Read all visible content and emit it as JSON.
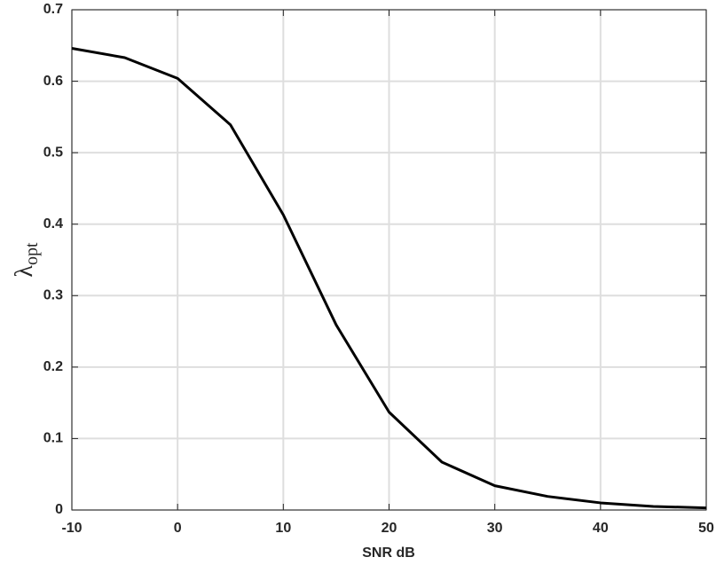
{
  "chart_data": {
    "type": "line",
    "x_label": "SNR dB",
    "y_label": {
      "symbol": "λ",
      "subscript": "opt"
    },
    "x": [
      -10,
      -5,
      0,
      5,
      10,
      15,
      20,
      25,
      30,
      35,
      40,
      45,
      50
    ],
    "series": [
      {
        "color": "#000000",
        "values": [
          0.646,
          0.633,
          0.604,
          0.539,
          0.413,
          0.259,
          0.137,
          0.067,
          0.034,
          0.019,
          0.01,
          0.005,
          0.003
        ]
      }
    ],
    "xlim": [
      -10,
      50
    ],
    "xticks": [
      -10,
      0,
      10,
      20,
      30,
      40,
      50
    ],
    "ylim": [
      0,
      0.7
    ],
    "yticks": [
      0,
      0.1,
      0.2,
      0.3,
      0.4,
      0.5,
      0.6,
      0.7
    ],
    "grid": true
  }
}
